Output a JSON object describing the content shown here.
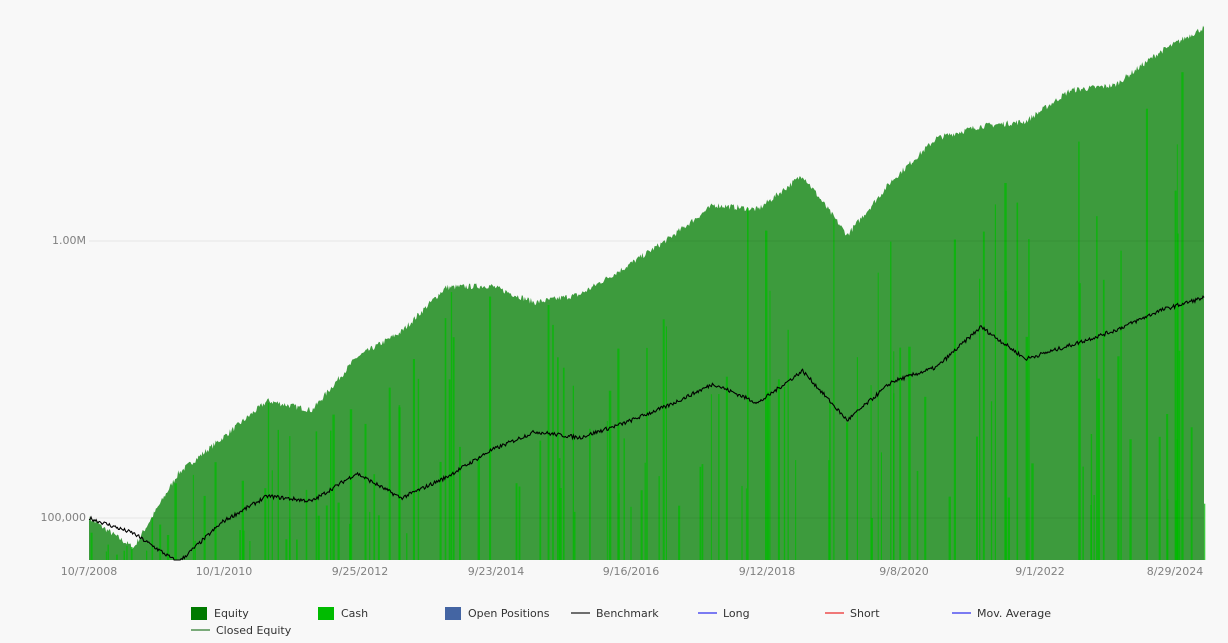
{
  "chart_data": {
    "type": "area",
    "title": "",
    "xlabel": "",
    "ylabel": "",
    "yscale": "log",
    "ylim": [
      65000,
      6300000
    ],
    "grid": true,
    "legend_position": "bottom",
    "y_ticks": [
      {
        "label": "1.00M",
        "value": 1000000
      },
      {
        "label": "100,000",
        "value": 100000
      }
    ],
    "x_ticks": [
      "10/7/2008",
      "10/1/2010",
      "9/25/2012",
      "9/23/2014",
      "9/16/2016",
      "9/12/2018",
      "9/8/2020",
      "9/1/2022",
      "8/29/2024"
    ],
    "series": [
      {
        "name": "Equity",
        "type": "area",
        "color": "#3d9b3d",
        "x": [
          "10/7/2008",
          "3/2009",
          "10/2009",
          "10/2010",
          "6/2011",
          "10/2011",
          "9/2012",
          "6/2013",
          "6/2014",
          "10/2014",
          "6/2015",
          "2/2016",
          "9/2016",
          "9/2017",
          "9/2018",
          "12/2018",
          "12/2019",
          "3/2020",
          "6/2020",
          "9/2020",
          "6/2021",
          "9/2022",
          "12/2022",
          "9/2023",
          "6/2024",
          "1/2025"
        ],
        "values": [
          100000,
          78000,
          145000,
          195000,
          265000,
          245000,
          380000,
          470000,
          680000,
          690000,
          600000,
          640000,
          800000,
          1020000,
          1350000,
          1300000,
          1730000,
          1050000,
          1650000,
          2350000,
          2600000,
          2700000,
          3500000,
          3650000,
          4800000,
          5900000
        ]
      },
      {
        "name": "Benchmark",
        "type": "line",
        "color": "#000000",
        "x": [
          "10/7/2008",
          "11/2008",
          "3/2009",
          "10/2009",
          "6/2010",
          "10/2010",
          "4/2011",
          "9/2011",
          "9/2012",
          "9/2013",
          "9/2014",
          "2/2016",
          "9/2016",
          "9/2017",
          "9/2018",
          "12/2018",
          "12/2019",
          "3/2020",
          "6/2020",
          "9/2020",
          "12/2021",
          "10/2022",
          "3/2023",
          "12/2023",
          "6/2024",
          "1/2025"
        ],
        "values": [
          100000,
          88000,
          69000,
          97000,
          120000,
          115000,
          145000,
          118000,
          140000,
          175000,
          205000,
          195000,
          220000,
          255000,
          305000,
          260000,
          340000,
          225000,
          310000,
          350000,
          490000,
          375000,
          420000,
          475000,
          560000,
          625000
        ]
      },
      {
        "name": "Cash",
        "type": "area",
        "color": "#00bb00",
        "values": []
      },
      {
        "name": "Open Positions",
        "type": "area",
        "color": "#4465a3",
        "values": []
      },
      {
        "name": "Long",
        "type": "line",
        "color": "#7b7bf2",
        "values": []
      },
      {
        "name": "Short",
        "type": "line",
        "color": "#f07878",
        "values": []
      },
      {
        "name": "Mov. Average",
        "type": "line",
        "color": "#7b7bf2",
        "values": []
      },
      {
        "name": "Closed Equity",
        "type": "line",
        "color": "#7aaa7a",
        "values": []
      }
    ]
  },
  "axes": {
    "y": [
      "1.00M",
      "100,000"
    ],
    "x": [
      "10/7/2008",
      "10/1/2010",
      "9/25/2012",
      "9/23/2014",
      "9/16/2016",
      "9/12/2018",
      "9/8/2020",
      "9/1/2022",
      "8/29/2024"
    ]
  },
  "legend": [
    {
      "label": "Equity",
      "kind": "box",
      "color": "#007a00"
    },
    {
      "label": "Cash",
      "kind": "box",
      "color": "#00bb00"
    },
    {
      "label": "Open Positions",
      "kind": "box",
      "color": "#4465a3"
    },
    {
      "label": "Benchmark",
      "kind": "line",
      "color": "#6e6e6e"
    },
    {
      "label": "Long",
      "kind": "line",
      "color": "#7b7bf2"
    },
    {
      "label": "Short",
      "kind": "line",
      "color": "#f07878"
    },
    {
      "label": "Mov. Average",
      "kind": "line",
      "color": "#7b7bf2"
    },
    {
      "label": "Closed Equity",
      "kind": "line",
      "color": "#7aaa7a"
    }
  ]
}
